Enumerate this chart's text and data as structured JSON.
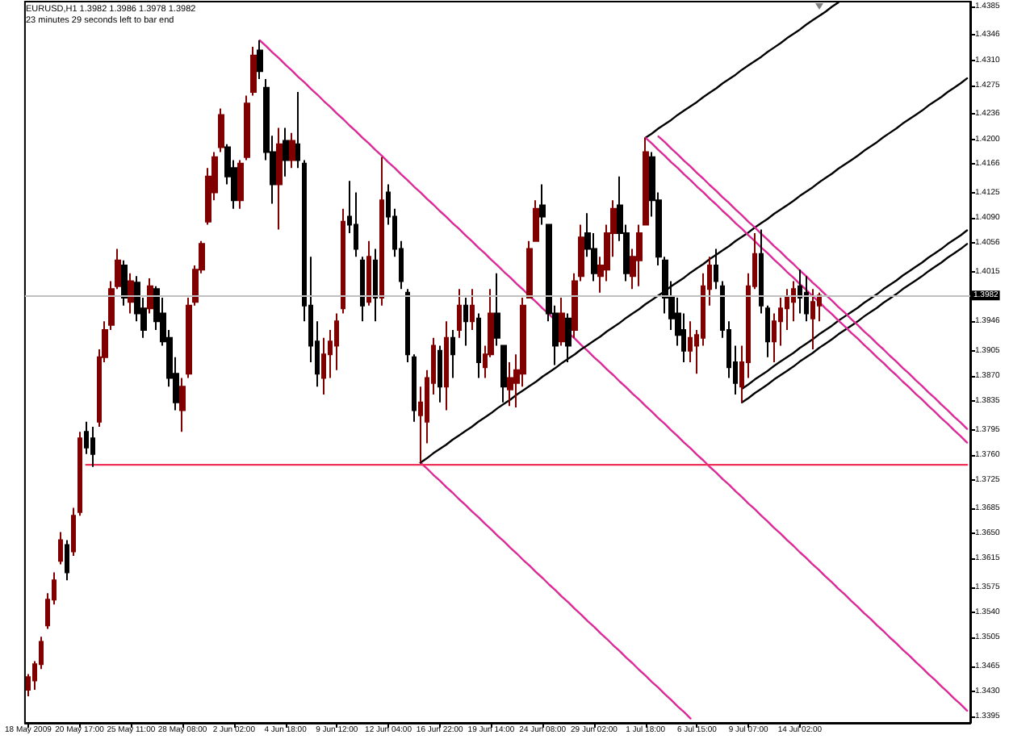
{
  "chart_data": {
    "type": "candlestick",
    "title": "EURUSD,H1 1.3982 1.3986 1.3978 1.3982",
    "subtitle": "23 minutes 29 seconds left to bar end",
    "categories": [
      "18 May 2009",
      null,
      null,
      null,
      null,
      null,
      null,
      null,
      "20 May 17:00",
      null,
      null,
      null,
      null,
      null,
      null,
      null,
      "25 May 11:00",
      null,
      null,
      null,
      null,
      null,
      null,
      null,
      "28 May 08:00",
      null,
      null,
      null,
      null,
      null,
      null,
      null,
      "2 Jun 02:00",
      null,
      null,
      null,
      null,
      null,
      null,
      null,
      "4 Jun 18:00",
      null,
      null,
      null,
      null,
      null,
      null,
      null,
      "9 Jun 12:00",
      null,
      null,
      null,
      null,
      null,
      null,
      null,
      "12 Jun 04:00",
      null,
      null,
      null,
      null,
      null,
      null,
      null,
      "16 Jun 22:00",
      null,
      null,
      null,
      null,
      null,
      null,
      null,
      "19 Jun 14:00",
      null,
      null,
      null,
      null,
      null,
      null,
      null,
      "24 Jun 08:00",
      null,
      null,
      null,
      null,
      null,
      null,
      null,
      "29 Jun 02:00",
      null,
      null,
      null,
      null,
      null,
      null,
      null,
      "1 Jul 18:00",
      null,
      null,
      null,
      null,
      null,
      null,
      null,
      "6 Jul 15:00",
      null,
      null,
      null,
      null,
      null,
      null,
      null,
      "9 Jul 07:00",
      null,
      null,
      null,
      null,
      null,
      null,
      null,
      "14 Jul 02:00",
      null,
      null,
      null,
      null,
      null,
      null,
      null,
      null,
      null,
      null,
      null,
      null,
      null,
      null,
      null,
      null,
      null,
      null,
      null,
      null,
      null,
      null,
      null,
      null,
      null,
      null
    ],
    "ohlc": [
      [
        1.3432,
        1.3454,
        1.3423,
        1.345
      ],
      [
        1.3445,
        1.3472,
        1.3432,
        1.3468
      ],
      [
        1.3468,
        1.3506,
        1.3461,
        1.3499
      ],
      [
        1.3522,
        1.3567,
        1.3517,
        1.3558
      ],
      [
        1.3558,
        1.3596,
        1.3551,
        1.3585
      ],
      [
        1.3612,
        1.3652,
        1.3607,
        1.3641
      ],
      [
        1.3634,
        1.3641,
        1.3585,
        1.3596
      ],
      [
        1.3625,
        1.3686,
        1.3619,
        1.3675
      ],
      [
        1.368,
        1.3792,
        1.3675,
        1.3783
      ],
      [
        1.3792,
        1.3806,
        1.3761,
        1.377
      ],
      [
        1.3783,
        1.3799,
        1.3743,
        1.3761
      ],
      [
        1.3806,
        1.3907,
        1.3799,
        1.3896
      ],
      [
        1.3896,
        1.3946,
        1.3889,
        1.3934
      ],
      [
        1.3941,
        1.4002,
        1.3934,
        1.3991
      ],
      [
        1.3995,
        1.4047,
        1.3991,
        1.4031
      ],
      [
        1.4024,
        1.4031,
        1.3968,
        1.3979
      ],
      [
        1.3973,
        1.4013,
        1.3957,
        1.4002
      ],
      [
        1.4,
        1.4009,
        1.3946,
        1.3957
      ],
      [
        1.3964,
        1.3979,
        1.3923,
        1.3934
      ],
      [
        1.3964,
        1.4006,
        1.3957,
        1.3995
      ],
      [
        1.3991,
        1.3995,
        1.3934,
        1.3946
      ],
      [
        1.3957,
        1.3979,
        1.3912,
        1.3918
      ],
      [
        1.3923,
        1.3934,
        1.3855,
        1.3867
      ],
      [
        1.3873,
        1.3896,
        1.3822,
        1.3833
      ],
      [
        1.3822,
        1.3867,
        1.3792,
        1.3855
      ],
      [
        1.3873,
        1.3979,
        1.3867,
        1.3968
      ],
      [
        1.3973,
        1.4024,
        1.3968,
        1.4018
      ],
      [
        1.4018,
        1.4058,
        1.4013,
        1.4054
      ],
      [
        1.4085,
        1.416,
        1.4081,
        1.4148
      ],
      [
        1.4126,
        1.4182,
        1.4115,
        1.4175
      ],
      [
        1.4189,
        1.4243,
        1.4182,
        1.4234
      ],
      [
        1.4189,
        1.4193,
        1.4137,
        1.4148
      ],
      [
        1.416,
        1.4171,
        1.4103,
        1.4115
      ],
      [
        1.4115,
        1.4171,
        1.4103,
        1.4166
      ],
      [
        1.4175,
        1.4261,
        1.4171,
        1.425
      ],
      [
        1.4266,
        1.4329,
        1.4261,
        1.4317
      ],
      [
        1.4324,
        1.4338,
        1.4284,
        1.4295
      ],
      [
        1.4272,
        1.4284,
        1.4171,
        1.4182
      ],
      [
        1.4182,
        1.4205,
        1.411,
        1.4137
      ],
      [
        1.4137,
        1.4216,
        1.4074,
        1.4193
      ],
      [
        1.4198,
        1.4216,
        1.4148,
        1.4171
      ],
      [
        1.4171,
        1.4209,
        1.416,
        1.4198
      ],
      [
        1.4193,
        1.4266,
        1.416,
        1.4171
      ],
      [
        1.4166,
        1.4171,
        1.3946,
        1.3968
      ],
      [
        1.3968,
        1.4036,
        1.3889,
        1.3912
      ],
      [
        1.3918,
        1.3946,
        1.3855,
        1.3873
      ],
      [
        1.3867,
        1.3923,
        1.3844,
        1.39
      ],
      [
        1.39,
        1.3934,
        1.3867,
        1.3918
      ],
      [
        1.3912,
        1.3957,
        1.3878,
        1.3946
      ],
      [
        1.3964,
        1.4103,
        1.3957,
        1.4085
      ],
      [
        1.4092,
        1.4142,
        1.4069,
        1.4081
      ],
      [
        1.4081,
        1.4126,
        1.4036,
        1.4047
      ],
      [
        1.4031,
        1.4036,
        1.3946,
        1.3968
      ],
      [
        1.3973,
        1.4058,
        1.3968,
        1.4036
      ],
      [
        1.4031,
        1.4047,
        1.3946,
        1.3979
      ],
      [
        1.3979,
        1.4175,
        1.3968,
        1.4115
      ],
      [
        1.4126,
        1.4137,
        1.4081,
        1.4092
      ],
      [
        1.4092,
        1.4103,
        1.4036,
        1.4047
      ],
      [
        1.4047,
        1.4058,
        1.3991,
        1.4002
      ],
      [
        1.3986,
        1.3991,
        1.3889,
        1.39
      ],
      [
        1.3896,
        1.39,
        1.3806,
        1.3822
      ],
      [
        1.3815,
        1.3855,
        1.3749,
        1.3833
      ],
      [
        1.3806,
        1.3878,
        1.3776,
        1.3867
      ],
      [
        1.386,
        1.3923,
        1.3844,
        1.3912
      ],
      [
        1.3905,
        1.3912,
        1.3833,
        1.3855
      ],
      [
        1.3855,
        1.3946,
        1.3822,
        1.3923
      ],
      [
        1.3923,
        1.3934,
        1.3867,
        1.39
      ],
      [
        1.3934,
        1.3991,
        1.3923,
        1.3968
      ],
      [
        1.3968,
        1.3979,
        1.3912,
        1.3946
      ],
      [
        1.3946,
        1.3991,
        1.3934,
        1.3968
      ],
      [
        1.395,
        1.3957,
        1.3867,
        1.3889
      ],
      [
        1.3882,
        1.3912,
        1.3867,
        1.39
      ],
      [
        1.39,
        1.3991,
        1.3896,
        1.3957
      ],
      [
        1.3957,
        1.4013,
        1.3912,
        1.3923
      ],
      [
        1.3912,
        1.3912,
        1.3833,
        1.3855
      ],
      [
        1.3851,
        1.3889,
        1.3828,
        1.3867
      ],
      [
        1.386,
        1.39,
        1.3826,
        1.3878
      ],
      [
        1.3873,
        1.3979,
        1.3855,
        1.3968
      ],
      [
        1.3979,
        1.4058,
        1.3979,
        1.4047
      ],
      [
        1.4058,
        1.4115,
        1.4058,
        1.4103
      ],
      [
        1.4108,
        1.4137,
        1.4081,
        1.4092
      ],
      [
        1.4081,
        1.4081,
        1.3946,
        1.3957
      ],
      [
        1.3957,
        1.3968,
        1.3885,
        1.3912
      ],
      [
        1.3918,
        1.3979,
        1.3912,
        1.3957
      ],
      [
        1.395,
        1.3957,
        1.3889,
        1.3912
      ],
      [
        1.3934,
        1.4013,
        1.3923,
        1.4002
      ],
      [
        1.4009,
        1.4081,
        1.4002,
        1.4063
      ],
      [
        1.4069,
        1.4097,
        1.4036,
        1.4047
      ],
      [
        1.4047,
        1.4069,
        1.4002,
        1.4013
      ],
      [
        1.4009,
        1.4036,
        1.3986,
        1.4024
      ],
      [
        1.4018,
        1.4081,
        1.4002,
        1.4069
      ],
      [
        1.4069,
        1.4115,
        1.4036,
        1.4103
      ],
      [
        1.4108,
        1.4148,
        1.4058,
        1.4069
      ],
      [
        1.4069,
        1.4081,
        1.4002,
        1.4013
      ],
      [
        1.4009,
        1.4047,
        1.3991,
        1.4036
      ],
      [
        1.4031,
        1.4081,
        1.3995,
        1.4069
      ],
      [
        1.4081,
        1.4202,
        1.4081,
        1.4182
      ],
      [
        1.4175,
        1.4182,
        1.4092,
        1.4115
      ],
      [
        1.4115,
        1.4126,
        1.4024,
        1.4036
      ],
      [
        1.4031,
        1.4036,
        1.3957,
        1.3979
      ],
      [
        1.3979,
        1.4002,
        1.3934,
        1.395
      ],
      [
        1.3957,
        1.3979,
        1.3912,
        1.3927
      ],
      [
        1.3934,
        1.3957,
        1.3889,
        1.3905
      ],
      [
        1.3905,
        1.3946,
        1.3889,
        1.3923
      ],
      [
        1.3912,
        1.3934,
        1.3873,
        1.3927
      ],
      [
        1.3923,
        1.4013,
        1.3912,
        1.3995
      ],
      [
        1.3991,
        1.4036,
        1.3968,
        1.4024
      ],
      [
        1.4024,
        1.4047,
        1.3991,
        1.4002
      ],
      [
        1.3995,
        1.4002,
        1.3923,
        1.3934
      ],
      [
        1.3934,
        1.3946,
        1.3867,
        1.3882
      ],
      [
        1.3889,
        1.3912,
        1.3844,
        1.386
      ],
      [
        1.3855,
        1.3912,
        1.3833,
        1.3889
      ],
      [
        1.3889,
        1.4013,
        1.3867,
        1.3995
      ],
      [
        1.3995,
        1.4069,
        1.3991,
        1.404
      ],
      [
        1.404,
        1.4074,
        1.3957,
        1.3968
      ],
      [
        1.3964,
        1.3968,
        1.3896,
        1.3918
      ],
      [
        1.3918,
        1.3957,
        1.3889,
        1.3946
      ],
      [
        1.3946,
        1.3979,
        1.3912,
        1.3964
      ],
      [
        1.3964,
        1.3991,
        1.3934,
        1.3979
      ],
      [
        1.3973,
        1.4002,
        1.3946,
        1.3991
      ],
      [
        1.3995,
        1.4018,
        1.3957,
        1.3979
      ],
      [
        1.3986,
        1.4009,
        1.3946,
        1.3957
      ],
      [
        1.395,
        1.3991,
        1.3907,
        1.3973
      ],
      [
        1.3968,
        1.3986,
        1.3946,
        1.3982
      ],
      null,
      null,
      null,
      null,
      null,
      null,
      null,
      null,
      null,
      null,
      null,
      null,
      null,
      null,
      null,
      null,
      null,
      null,
      null,
      null,
      null,
      null,
      null
    ],
    "colors": [
      "#800000",
      "#800000",
      "#800000",
      "#800000",
      "#800000",
      "#800000",
      "#000000",
      "#800000",
      "#800000",
      "#000000",
      "#000000",
      "#800000",
      "#800000",
      "#800000",
      "#800000",
      "#000000",
      "#800000",
      "#000000",
      "#000000",
      "#800000",
      "#000000",
      "#000000",
      "#000000",
      "#000000",
      "#800000",
      "#800000",
      "#800000",
      "#800000",
      "#800000",
      "#800000",
      "#800000",
      "#000000",
      "#000000",
      "#800000",
      "#800000",
      "#800000",
      "#000000",
      "#000000",
      "#000000",
      "#800000",
      "#000000",
      "#800000",
      "#000000",
      "#000000",
      "#000000",
      "#000000",
      "#800000",
      "#800000",
      "#800000",
      "#800000",
      "#000000",
      "#000000",
      "#000000",
      "#800000",
      "#000000",
      "#800000",
      "#000000",
      "#000000",
      "#000000",
      "#000000",
      "#000000",
      "#800000",
      "#800000",
      "#800000",
      "#000000",
      "#800000",
      "#000000",
      "#800000",
      "#000000",
      "#800000",
      "#000000",
      "#800000",
      "#800000",
      "#000000",
      "#000000",
      "#800000",
      "#800000",
      "#800000",
      "#800000",
      "#800000",
      "#000000",
      "#000000",
      "#000000",
      "#800000",
      "#000000",
      "#800000",
      "#800000",
      "#000000",
      "#000000",
      "#800000",
      "#800000",
      "#800000",
      "#000000",
      "#000000",
      "#800000",
      "#800000",
      "#800000",
      "#000000",
      "#000000",
      "#000000",
      "#000000",
      "#000000",
      "#000000",
      "#800000",
      "#800000",
      "#800000",
      "#800000",
      "#000000",
      "#000000",
      "#000000",
      "#000000",
      "#800000",
      "#800000",
      "#800000",
      "#000000",
      "#000000",
      "#800000",
      "#800000",
      "#800000",
      "#800000",
      "#000000",
      "#000000",
      "#800000",
      "#800000",
      null,
      null,
      null,
      null,
      null,
      null,
      null,
      null,
      null,
      null,
      null,
      null,
      null,
      null,
      null,
      null,
      null,
      null,
      null,
      null,
      null,
      null,
      null
    ],
    "series": [
      {
        "type": "line",
        "color": "#dc2a96",
        "values": [
          null,
          null,
          null,
          null,
          null,
          null,
          null,
          null,
          null,
          null,
          null,
          null,
          null,
          null,
          null,
          null,
          null,
          null,
          null,
          null,
          null,
          null,
          null,
          null,
          null,
          null,
          null,
          null,
          null,
          null,
          null,
          null,
          null,
          null,
          null,
          null,
          1.4338,
          1.433,
          1.4321,
          1.4313,
          1.4304,
          1.4296,
          1.4287,
          1.4279,
          1.427,
          1.4262,
          1.4253,
          1.4245,
          1.4236,
          1.4228,
          1.4219,
          1.4211,
          1.4202,
          1.4194,
          1.4185,
          1.4177,
          1.4168,
          1.416,
          1.4151,
          1.4143,
          1.4134,
          1.4126,
          1.4117,
          1.4109,
          1.41,
          1.4092,
          1.4083,
          1.4075,
          1.4066,
          1.4058,
          1.4049,
          1.4041,
          1.4032,
          1.4024,
          1.4015,
          1.4007,
          1.3998,
          1.399,
          1.3981,
          1.3973,
          1.3964,
          1.3956,
          1.3947,
          null,
          1.393,
          1.3922,
          1.3913,
          1.3905,
          1.3896,
          1.3888,
          1.3879,
          1.3871,
          1.3862,
          1.3854,
          1.3845,
          1.3837,
          1.3828,
          1.382,
          1.3811,
          1.3803,
          1.3794,
          1.3786,
          1.3777,
          1.3769,
          1.376,
          1.3752,
          1.3743,
          1.3735,
          1.3726,
          1.3718,
          1.3709,
          1.3701,
          1.3692,
          1.3684,
          1.3675,
          1.3667,
          1.3658,
          1.365,
          1.3641,
          1.3633,
          1.3624,
          1.3616,
          1.3607,
          1.3599,
          1.359,
          1.3582,
          1.3573,
          1.3565,
          1.3556,
          1.3548,
          1.3539,
          1.3531,
          1.3522,
          1.3514,
          1.3505,
          1.3497,
          1.3488,
          1.348,
          1.3471,
          1.3463,
          1.3454,
          1.3446,
          1.3437,
          1.3429,
          1.342,
          1.3412,
          1.3403
        ]
      },
      {
        "type": "line",
        "color": "#dc2a96",
        "values": [
          null,
          null,
          null,
          null,
          null,
          null,
          null,
          null,
          null,
          null,
          null,
          null,
          null,
          null,
          null,
          null,
          null,
          null,
          null,
          null,
          null,
          null,
          null,
          null,
          null,
          null,
          null,
          null,
          null,
          null,
          null,
          null,
          null,
          null,
          null,
          null,
          null,
          null,
          null,
          null,
          null,
          null,
          null,
          null,
          null,
          null,
          null,
          null,
          null,
          null,
          null,
          null,
          null,
          null,
          null,
          null,
          null,
          null,
          null,
          null,
          null,
          1.3749,
          1.3741,
          1.3732,
          1.3724,
          1.3715,
          1.3707,
          1.3698,
          1.369,
          1.3681,
          1.3673,
          1.3664,
          1.3656,
          1.3647,
          1.3639,
          1.363,
          1.3622,
          1.3613,
          1.3605,
          1.3596,
          1.3588,
          1.3579,
          1.3571,
          1.3562,
          1.3554,
          1.3545,
          1.3537,
          1.3528,
          1.352,
          1.3511,
          1.3503,
          1.3494,
          1.3486,
          1.3477,
          1.3469,
          1.346,
          1.3452,
          1.3443,
          1.3435,
          1.3426,
          1.3418,
          1.3409,
          1.3401,
          1.3392,
          null,
          null,
          null,
          null,
          null,
          null,
          null,
          null,
          null,
          null,
          null,
          null,
          null,
          null,
          null,
          null,
          null,
          null,
          null,
          null,
          null,
          null,
          null,
          null,
          null,
          null,
          null,
          null,
          null,
          null,
          null,
          null,
          null,
          null,
          null,
          null,
          null,
          null,
          null,
          null,
          null,
          null,
          null
        ]
      },
      {
        "type": "line",
        "color": "#f0325a",
        "values": [
          null,
          null,
          null,
          null,
          null,
          null,
          null,
          null,
          null,
          1.3746,
          1.3746,
          1.3746,
          1.3746,
          1.3746,
          1.3746,
          1.3746,
          1.3746,
          1.3746,
          1.3746,
          1.3746,
          1.3746,
          1.3746,
          1.3746,
          1.3746,
          1.3746,
          1.3746,
          1.3746,
          1.3746,
          1.3746,
          1.3746,
          1.3746,
          1.3746,
          1.3746,
          1.3746,
          1.3746,
          1.3746,
          1.3746,
          1.3746,
          1.3746,
          1.3746,
          1.3746,
          1.3746,
          1.3746,
          1.3746,
          1.3746,
          1.3746,
          1.3746,
          1.3746,
          1.3746,
          1.3746,
          1.3746,
          1.3746,
          1.3746,
          1.3746,
          1.3746,
          1.3746,
          1.3746,
          1.3746,
          1.3746,
          1.3746,
          1.3746,
          1.3746,
          1.3746,
          1.3746,
          1.3746,
          1.3746,
          1.3746,
          1.3746,
          1.3746,
          1.3746,
          1.3746,
          1.3746,
          1.3746,
          1.3746,
          1.3746,
          1.3746,
          1.3746,
          1.3746,
          1.3746,
          1.3746,
          1.3746,
          1.3746,
          1.3746,
          1.3746,
          1.3746,
          1.3746,
          1.3746,
          1.3746,
          1.3746,
          1.3746,
          1.3746,
          1.3746,
          1.3746,
          1.3746,
          1.3746,
          1.3746,
          1.3746,
          1.3746,
          1.3746,
          1.3746,
          1.3746,
          1.3746,
          1.3746,
          1.3746,
          1.3746,
          1.3746,
          1.3746,
          1.3746,
          1.3746,
          1.3746,
          1.3746,
          1.3746,
          1.3746,
          1.3746,
          1.3746,
          1.3746,
          1.3746,
          1.3746,
          1.3746,
          1.3746,
          1.3746,
          1.3746,
          1.3746,
          1.3746,
          1.3746,
          1.3746,
          1.3746,
          1.3746,
          1.3746,
          1.3746,
          1.3746,
          1.3746,
          1.3746,
          1.3746,
          1.3746,
          1.3746,
          1.3746,
          1.3746,
          1.3746,
          1.3746,
          1.3746,
          1.3746,
          1.3746,
          1.3746,
          1.3746,
          1.3746,
          1.3746
        ]
      },
      {
        "type": "line",
        "color": "#000000",
        "values": [
          null,
          null,
          null,
          null,
          null,
          null,
          null,
          null,
          null,
          null,
          null,
          null,
          null,
          null,
          null,
          null,
          null,
          null,
          null,
          null,
          null,
          null,
          null,
          null,
          null,
          null,
          null,
          null,
          null,
          null,
          null,
          null,
          null,
          null,
          null,
          null,
          null,
          null,
          null,
          null,
          null,
          null,
          null,
          null,
          null,
          null,
          null,
          null,
          null,
          null,
          null,
          null,
          null,
          null,
          null,
          null,
          null,
          null,
          null,
          null,
          null,
          1.3749,
          1.3755,
          1.3762,
          1.3768,
          1.3774,
          1.3781,
          1.3787,
          1.3793,
          1.3799,
          1.3806,
          1.3812,
          1.3818,
          1.3825,
          1.3831,
          1.3837,
          1.3844,
          1.385,
          1.3856,
          1.3862,
          1.3869,
          1.3875,
          1.3881,
          1.3888,
          1.3894,
          1.39,
          1.3907,
          1.3913,
          1.3919,
          1.3925,
          1.3932,
          1.3938,
          1.3944,
          1.3951,
          1.3957,
          1.3963,
          1.397,
          1.3976,
          1.3982,
          1.3988,
          1.3995,
          1.4001,
          1.4007,
          1.4014,
          1.402,
          1.4026,
          1.4033,
          1.4039,
          1.4045,
          1.4051,
          1.4058,
          1.4064,
          1.407,
          1.4077,
          1.4083,
          1.4089,
          1.4096,
          1.4102,
          1.4108,
          1.4114,
          1.4121,
          1.4127,
          1.4133,
          1.414,
          1.4146,
          1.4152,
          1.4159,
          1.4165,
          1.4171,
          1.4177,
          1.4184,
          1.419,
          1.4196,
          1.4203,
          1.4209,
          1.4215,
          1.4222,
          1.4228,
          1.4234,
          1.424,
          1.4247,
          1.4253,
          1.4259,
          1.4266,
          1.4272,
          1.4278,
          1.4285
        ]
      },
      {
        "type": "line",
        "color": "#000000",
        "values": [
          null,
          null,
          null,
          null,
          null,
          null,
          null,
          null,
          null,
          null,
          null,
          null,
          null,
          null,
          null,
          null,
          null,
          null,
          null,
          null,
          null,
          null,
          null,
          null,
          null,
          null,
          null,
          null,
          null,
          null,
          null,
          null,
          null,
          null,
          null,
          null,
          null,
          null,
          null,
          null,
          null,
          null,
          null,
          null,
          null,
          null,
          null,
          null,
          null,
          null,
          null,
          null,
          null,
          null,
          null,
          null,
          null,
          null,
          null,
          null,
          null,
          null,
          null,
          null,
          null,
          null,
          null,
          null,
          null,
          null,
          null,
          null,
          null,
          null,
          null,
          null,
          null,
          null,
          null,
          null,
          null,
          null,
          null,
          null,
          null,
          null,
          null,
          null,
          null,
          null,
          null,
          null,
          null,
          null,
          null,
          null,
          1.4202,
          1.4208,
          1.4215,
          1.4221,
          1.4227,
          1.4234,
          1.424,
          1.4246,
          1.4252,
          1.4259,
          1.4265,
          1.4271,
          1.4278,
          1.4284,
          1.429,
          1.4297,
          1.4303,
          1.4309,
          1.4315,
          1.4322,
          1.4328,
          1.4334,
          1.4341,
          1.4347,
          1.4353,
          1.436,
          1.4366,
          1.4372,
          1.4378,
          1.4385,
          1.4391,
          null,
          null,
          null,
          null,
          null,
          null,
          null,
          null,
          null,
          null,
          null,
          null,
          null,
          null,
          null,
          null,
          null,
          null,
          null,
          null
        ]
      },
      {
        "type": "line",
        "color": "#000000",
        "values": [
          null,
          null,
          null,
          null,
          null,
          null,
          null,
          null,
          null,
          null,
          null,
          null,
          null,
          null,
          null,
          null,
          null,
          null,
          null,
          null,
          null,
          null,
          null,
          null,
          null,
          null,
          null,
          null,
          null,
          null,
          null,
          null,
          null,
          null,
          null,
          null,
          null,
          null,
          null,
          null,
          null,
          null,
          null,
          null,
          null,
          null,
          null,
          null,
          null,
          null,
          null,
          null,
          null,
          null,
          null,
          null,
          null,
          null,
          null,
          null,
          null,
          null,
          null,
          null,
          null,
          null,
          null,
          null,
          null,
          null,
          null,
          null,
          null,
          null,
          null,
          null,
          null,
          null,
          null,
          null,
          null,
          null,
          null,
          null,
          null,
          null,
          null,
          null,
          null,
          null,
          null,
          null,
          null,
          null,
          null,
          null,
          null,
          null,
          null,
          null,
          null,
          null,
          null,
          null,
          null,
          null,
          null,
          null,
          null,
          null,
          null,
          1.3833,
          1.3839,
          1.3846,
          1.3852,
          1.3858,
          1.3865,
          1.3871,
          1.3877,
          1.3883,
          1.389,
          1.3896,
          1.3902,
          1.3909,
          1.3915,
          1.3921,
          1.3928,
          1.3934,
          1.394,
          1.3946,
          1.3953,
          1.3959,
          1.3965,
          1.3972,
          1.3978,
          1.3984,
          1.3991,
          1.3997,
          1.4003,
          1.4009,
          1.4016,
          1.4022,
          1.4028,
          1.4035,
          1.4041,
          1.4047,
          1.4054
        ]
      },
      {
        "type": "line",
        "color": "#000000",
        "values": [
          null,
          null,
          null,
          null,
          null,
          null,
          null,
          null,
          null,
          null,
          null,
          null,
          null,
          null,
          null,
          null,
          null,
          null,
          null,
          null,
          null,
          null,
          null,
          null,
          null,
          null,
          null,
          null,
          null,
          null,
          null,
          null,
          null,
          null,
          null,
          null,
          null,
          null,
          null,
          null,
          null,
          null,
          null,
          null,
          null,
          null,
          null,
          null,
          null,
          null,
          null,
          null,
          null,
          null,
          null,
          null,
          null,
          null,
          null,
          null,
          null,
          null,
          null,
          null,
          null,
          null,
          null,
          null,
          null,
          null,
          null,
          null,
          null,
          null,
          null,
          null,
          null,
          null,
          null,
          null,
          null,
          null,
          null,
          null,
          null,
          null,
          null,
          null,
          null,
          null,
          null,
          null,
          null,
          null,
          null,
          null,
          null,
          null,
          null,
          null,
          null,
          null,
          null,
          null,
          null,
          null,
          null,
          null,
          null,
          null,
          null,
          1.3852,
          1.3858,
          1.3865,
          1.3871,
          1.3877,
          1.3884,
          1.389,
          1.3896,
          1.3902,
          1.3909,
          1.3915,
          1.3921,
          1.3928,
          1.3934,
          1.394,
          1.3947,
          1.3953,
          1.3959,
          1.3965,
          1.3972,
          1.3978,
          1.3984,
          1.3991,
          1.3997,
          1.4003,
          1.401,
          1.4016,
          1.4022,
          1.4028,
          1.4035,
          1.4041,
          1.4047,
          1.4054,
          1.406,
          1.4066,
          1.4073
        ]
      },
      {
        "type": "line",
        "color": "#dc2a96",
        "values": [
          null,
          null,
          null,
          null,
          null,
          null,
          null,
          null,
          null,
          null,
          null,
          null,
          null,
          null,
          null,
          null,
          null,
          null,
          null,
          null,
          null,
          null,
          null,
          null,
          null,
          null,
          null,
          null,
          null,
          null,
          null,
          null,
          null,
          null,
          null,
          null,
          null,
          null,
          null,
          null,
          null,
          null,
          null,
          null,
          null,
          null,
          null,
          null,
          null,
          null,
          null,
          null,
          null,
          null,
          null,
          null,
          null,
          null,
          null,
          null,
          null,
          null,
          null,
          null,
          null,
          null,
          null,
          null,
          null,
          null,
          null,
          null,
          null,
          null,
          null,
          null,
          null,
          null,
          null,
          null,
          null,
          null,
          null,
          null,
          null,
          null,
          null,
          null,
          null,
          null,
          null,
          null,
          null,
          null,
          null,
          null,
          null,
          null,
          1.4204,
          1.4196,
          1.4187,
          1.4179,
          1.417,
          1.4162,
          1.4153,
          1.4145,
          1.4136,
          1.4128,
          1.4119,
          1.4111,
          1.4102,
          1.4094,
          1.4085,
          1.4077,
          1.4068,
          1.406,
          1.4051,
          1.4043,
          1.4034,
          1.4026,
          1.4017,
          1.4009,
          1.4,
          1.3992,
          1.3983,
          1.3975,
          1.3966,
          1.3958,
          1.3949,
          1.3941,
          1.3932,
          1.3924,
          1.3915,
          1.3907,
          1.3898,
          1.389,
          1.3881,
          1.3873,
          1.3864,
          1.3856,
          1.3847,
          1.3839,
          1.383,
          1.3822,
          1.3813,
          1.3805,
          1.3796
        ]
      },
      {
        "type": "line",
        "color": "#dc2a96",
        "values": [
          null,
          null,
          null,
          null,
          null,
          null,
          null,
          null,
          null,
          null,
          null,
          null,
          null,
          null,
          null,
          null,
          null,
          null,
          null,
          null,
          null,
          null,
          null,
          null,
          null,
          null,
          null,
          null,
          null,
          null,
          null,
          null,
          null,
          null,
          null,
          null,
          null,
          null,
          null,
          null,
          null,
          null,
          null,
          null,
          null,
          null,
          null,
          null,
          null,
          null,
          null,
          null,
          null,
          null,
          null,
          null,
          null,
          null,
          null,
          null,
          null,
          null,
          null,
          null,
          null,
          null,
          null,
          null,
          null,
          null,
          null,
          null,
          null,
          null,
          null,
          null,
          null,
          null,
          null,
          null,
          null,
          null,
          null,
          null,
          null,
          null,
          null,
          null,
          null,
          null,
          null,
          null,
          null,
          null,
          null,
          null,
          1.4202,
          1.4194,
          1.4185,
          1.4177,
          1.4168,
          1.416,
          1.4151,
          1.4143,
          1.4134,
          1.4126,
          1.4117,
          1.4109,
          1.41,
          1.4092,
          1.4083,
          1.4075,
          1.4066,
          1.4058,
          1.4049,
          1.4041,
          1.4032,
          1.4024,
          1.4015,
          1.4007,
          1.3998,
          1.399,
          1.3981,
          1.3973,
          1.3964,
          1.3956,
          1.3947,
          1.3939,
          1.393,
          1.3922,
          1.3913,
          1.3905,
          1.3896,
          1.3888,
          1.3879,
          1.3871,
          1.3862,
          1.3854,
          1.3845,
          1.3837,
          1.3828,
          1.382,
          1.3811,
          1.3803,
          1.3794,
          1.3786,
          1.3777
        ]
      }
    ],
    "ylim": [
      1.3386,
      1.4392
    ],
    "yticks": [
      1.4385,
      1.4346,
      {
        "value": 1.431,
        "label": "1.4310"
      },
      1.4275,
      1.4236,
      {
        "value": 1.42,
        "label": "1.4200"
      },
      1.4166,
      1.4125,
      {
        "value": 1.409,
        "label": "1.4090"
      },
      1.4056,
      1.4015,
      1.3946,
      1.3905,
      {
        "value": 1.387,
        "label": "1.3870"
      },
      1.3835,
      1.3795,
      {
        "value": 1.376,
        "label": "1.3760"
      },
      1.3725,
      1.3685,
      {
        "value": 1.365,
        "label": "1.3650"
      },
      1.3615,
      1.3575,
      {
        "value": 1.354,
        "label": "1.3540"
      },
      1.3505,
      1.3465,
      {
        "value": 1.343,
        "label": "1.3430"
      },
      1.3395
    ],
    "ref_lines": [
      {
        "axis": "y",
        "value": 1.3982,
        "label": "1.3982",
        "color": "#c0c0c0"
      }
    ],
    "grid": false
  }
}
